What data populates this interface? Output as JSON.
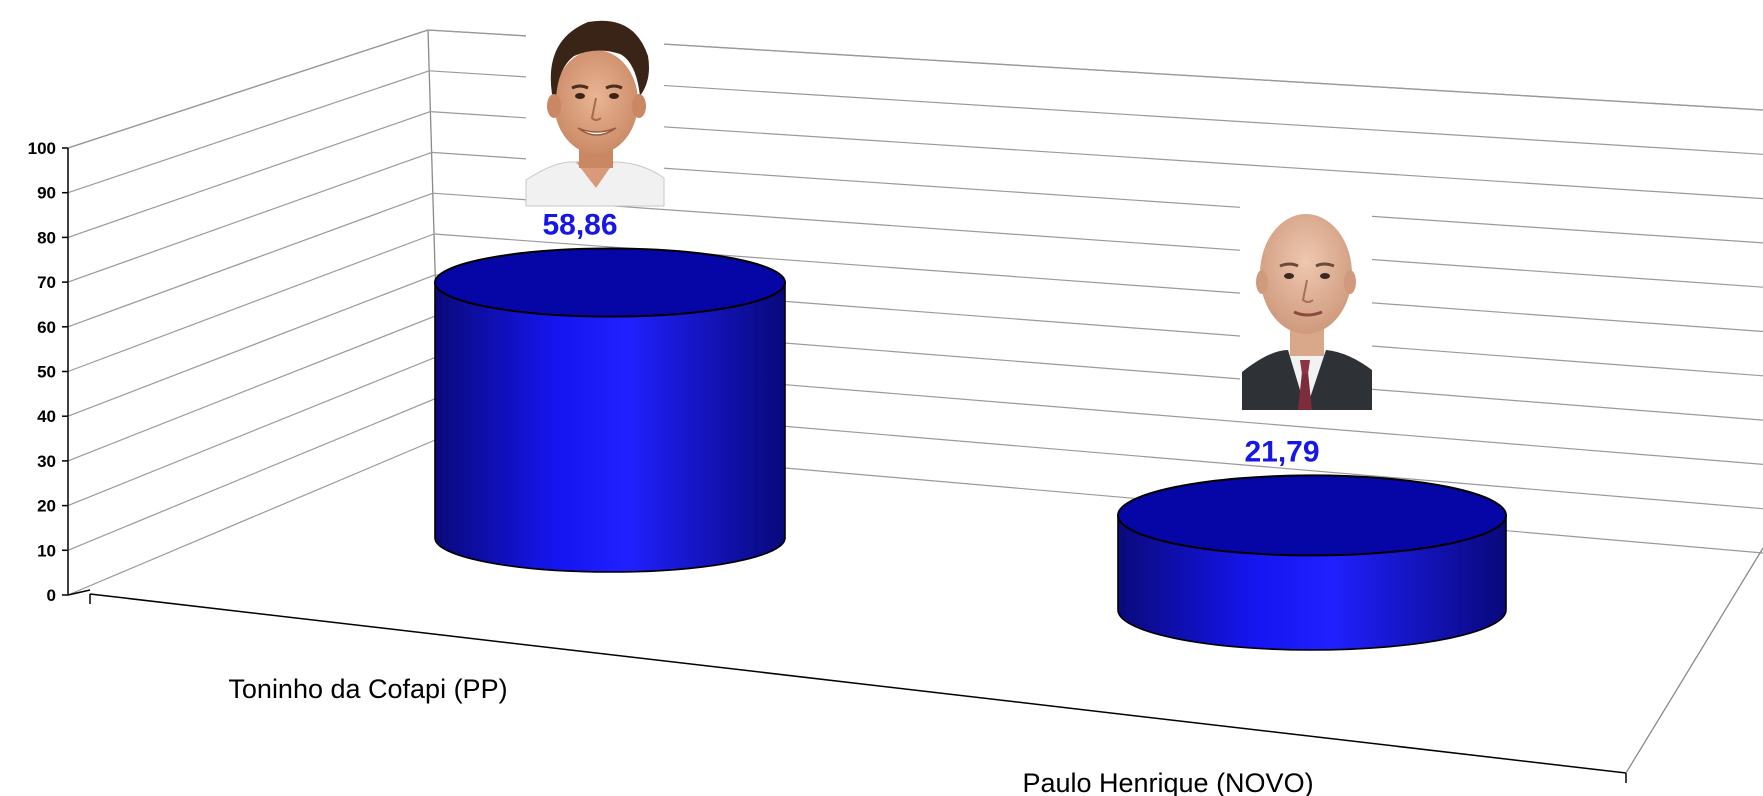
{
  "chart_data": {
    "type": "bar",
    "style": "3d-cylinder",
    "categories": [
      "Toninho da Cofapi  (PP)",
      "Paulo Henrique (NOVO)"
    ],
    "values": [
      58.86,
      21.79
    ],
    "value_labels": [
      "58,86",
      "21,79"
    ],
    "yticks": [
      "0",
      "10",
      "20",
      "30",
      "40",
      "50",
      "60",
      "70",
      "80",
      "90",
      "100"
    ],
    "ylim": [
      0,
      100
    ],
    "grid": true,
    "legend": "none",
    "colors": {
      "bar": "#1010e8",
      "bar_top": "#0606a6",
      "value_label": "#1616e6"
    },
    "portraits": [
      "candidate-portrait-toninho",
      "candidate-portrait-paulo"
    ]
  }
}
